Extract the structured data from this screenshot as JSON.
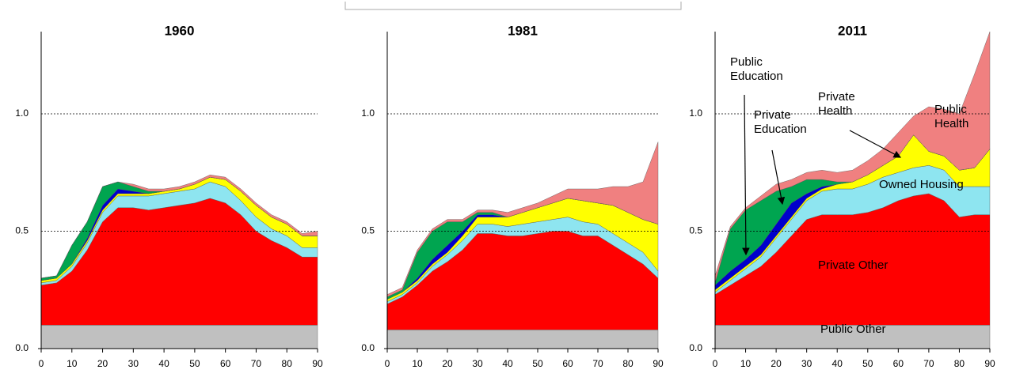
{
  "chart_data": [
    {
      "type": "stacked_area",
      "title": "1960",
      "x": [
        0,
        5,
        10,
        15,
        20,
        25,
        30,
        35,
        40,
        45,
        50,
        55,
        60,
        65,
        70,
        75,
        80,
        85,
        90
      ],
      "xlim": [
        0,
        90
      ],
      "xticks": [
        0,
        10,
        20,
        30,
        40,
        50,
        60,
        70,
        80,
        90
      ],
      "ylim": [
        0,
        1.35
      ],
      "yticks": [
        {
          "value": 0,
          "label": "0.0"
        },
        0.5,
        {
          "value": 1,
          "label": "1.0"
        }
      ],
      "grid": true,
      "series": [
        {
          "color": "#c0c0c0",
          "values": [
            0.1,
            0.1,
            0.1,
            0.1,
            0.1,
            0.1,
            0.1,
            0.1,
            0.1,
            0.1,
            0.1,
            0.1,
            0.1,
            0.1,
            0.1,
            0.1,
            0.1,
            0.1,
            0.1
          ]
        },
        {
          "color": "#ff0000",
          "values": [
            0.17,
            0.18,
            0.23,
            0.32,
            0.44,
            0.5,
            0.5,
            0.49,
            0.5,
            0.51,
            0.52,
            0.54,
            0.52,
            0.47,
            0.4,
            0.36,
            0.33,
            0.29,
            0.29
          ]
        },
        {
          "color": "#8ee5f0",
          "values": [
            0.01,
            0.01,
            0.02,
            0.03,
            0.04,
            0.05,
            0.05,
            0.06,
            0.06,
            0.06,
            0.06,
            0.07,
            0.07,
            0.06,
            0.06,
            0.05,
            0.05,
            0.04,
            0.04
          ]
        },
        {
          "color": "#ffff00",
          "values": [
            0.01,
            0.01,
            0.01,
            0.01,
            0.01,
            0.01,
            0.01,
            0.01,
            0.01,
            0.01,
            0.02,
            0.02,
            0.03,
            0.04,
            0.05,
            0.05,
            0.05,
            0.05,
            0.05
          ]
        },
        {
          "color": "#0000cc",
          "values": [
            0,
            0,
            0,
            0.01,
            0.02,
            0.02,
            0.01,
            0,
            0,
            0,
            0,
            0,
            0,
            0,
            0,
            0,
            0,
            0,
            0
          ]
        },
        {
          "color": "#00a550",
          "values": [
            0.01,
            0.01,
            0.08,
            0.07,
            0.08,
            0.03,
            0.02,
            0.01,
            0,
            0,
            0,
            0,
            0,
            0,
            0,
            0,
            0,
            0,
            0
          ]
        },
        {
          "color": "#f08080",
          "values": [
            0,
            0,
            0,
            0,
            0,
            0,
            0.01,
            0.01,
            0.01,
            0.01,
            0.01,
            0.01,
            0.01,
            0.01,
            0.01,
            0.01,
            0.01,
            0.01,
            0.02
          ]
        }
      ]
    },
    {
      "type": "stacked_area",
      "title": "1981",
      "x": [
        0,
        5,
        10,
        15,
        20,
        25,
        30,
        35,
        40,
        45,
        50,
        55,
        60,
        65,
        70,
        75,
        80,
        85,
        90
      ],
      "xlim": [
        0,
        90
      ],
      "xticks": [
        0,
        10,
        20,
        30,
        40,
        50,
        60,
        70,
        80,
        90
      ],
      "ylim": [
        0,
        1.35
      ],
      "yticks": [
        {
          "value": 0,
          "label": "0.0"
        },
        0.5,
        {
          "value": 1,
          "label": "1.0"
        }
      ],
      "grid": true,
      "series": [
        {
          "color": "#c0c0c0",
          "values": [
            0.08,
            0.08,
            0.08,
            0.08,
            0.08,
            0.08,
            0.08,
            0.08,
            0.08,
            0.08,
            0.08,
            0.08,
            0.08,
            0.08,
            0.08,
            0.08,
            0.08,
            0.08,
            0.08
          ]
        },
        {
          "color": "#ff0000",
          "values": [
            0.11,
            0.14,
            0.19,
            0.25,
            0.29,
            0.34,
            0.41,
            0.41,
            0.4,
            0.4,
            0.41,
            0.42,
            0.42,
            0.4,
            0.4,
            0.36,
            0.32,
            0.28,
            0.22
          ]
        },
        {
          "color": "#8ee5f0",
          "values": [
            0.01,
            0.01,
            0.01,
            0.02,
            0.03,
            0.04,
            0.04,
            0.04,
            0.04,
            0.05,
            0.05,
            0.05,
            0.06,
            0.06,
            0.05,
            0.05,
            0.05,
            0.05,
            0.03
          ]
        },
        {
          "color": "#ffff00",
          "values": [
            0.01,
            0.01,
            0.01,
            0.01,
            0.01,
            0.02,
            0.03,
            0.03,
            0.04,
            0.05,
            0.06,
            0.07,
            0.08,
            0.09,
            0.09,
            0.12,
            0.13,
            0.14,
            0.2
          ]
        },
        {
          "color": "#0000cc",
          "values": [
            0,
            0,
            0.01,
            0.02,
            0.03,
            0.02,
            0.01,
            0.01,
            0,
            0,
            0,
            0,
            0,
            0,
            0,
            0,
            0,
            0,
            0
          ]
        },
        {
          "color": "#00a550",
          "values": [
            0.01,
            0.01,
            0.11,
            0.12,
            0.1,
            0.04,
            0.01,
            0.01,
            0,
            0,
            0,
            0,
            0,
            0,
            0,
            0,
            0,
            0,
            0
          ]
        },
        {
          "color": "#f08080",
          "values": [
            0.01,
            0.01,
            0.01,
            0.01,
            0.01,
            0.01,
            0.01,
            0.01,
            0.02,
            0.02,
            0.02,
            0.03,
            0.04,
            0.05,
            0.06,
            0.08,
            0.11,
            0.16,
            0.35
          ]
        }
      ]
    },
    {
      "type": "stacked_area",
      "title": "2011",
      "x": [
        0,
        5,
        10,
        15,
        20,
        25,
        30,
        35,
        40,
        45,
        50,
        55,
        60,
        65,
        70,
        75,
        80,
        85,
        90
      ],
      "xlim": [
        0,
        90
      ],
      "xticks": [
        0,
        10,
        20,
        30,
        40,
        50,
        60,
        70,
        80,
        90
      ],
      "ylim": [
        0,
        1.35
      ],
      "yticks": [
        {
          "value": 0,
          "label": "0.0"
        },
        0.5,
        {
          "value": 1,
          "label": "1.0"
        }
      ],
      "grid": true,
      "series": [
        {
          "name": "Public  Other",
          "color": "#c0c0c0",
          "values": [
            0.1,
            0.1,
            0.1,
            0.1,
            0.1,
            0.1,
            0.1,
            0.1,
            0.1,
            0.1,
            0.1,
            0.1,
            0.1,
            0.1,
            0.1,
            0.1,
            0.1,
            0.1,
            0.1
          ]
        },
        {
          "name": "Private Other",
          "color": "#ff0000",
          "values": [
            0.13,
            0.17,
            0.21,
            0.25,
            0.31,
            0.38,
            0.45,
            0.47,
            0.47,
            0.47,
            0.48,
            0.5,
            0.53,
            0.55,
            0.56,
            0.53,
            0.46,
            0.47,
            0.47
          ]
        },
        {
          "name": "Owned Housing",
          "color": "#8ee5f0",
          "values": [
            0.01,
            0.02,
            0.03,
            0.04,
            0.06,
            0.07,
            0.08,
            0.1,
            0.11,
            0.11,
            0.12,
            0.13,
            0.12,
            0.12,
            0.12,
            0.13,
            0.13,
            0.12,
            0.12
          ]
        },
        {
          "name": "Private Health",
          "color": "#ffff00",
          "values": [
            0.01,
            0.01,
            0.01,
            0.01,
            0.01,
            0.01,
            0.01,
            0.01,
            0.02,
            0.03,
            0.04,
            0.05,
            0.07,
            0.14,
            0.06,
            0.06,
            0.07,
            0.08,
            0.16
          ]
        },
        {
          "name": "Private Education",
          "color": "#0000cc",
          "values": [
            0.02,
            0.03,
            0.03,
            0.04,
            0.05,
            0.06,
            0.02,
            0.01,
            0,
            0,
            0,
            0,
            0,
            0,
            0,
            0,
            0,
            0,
            0
          ]
        },
        {
          "name": "Public Education",
          "color": "#00a550",
          "values": [
            0.01,
            0.18,
            0.21,
            0.19,
            0.14,
            0.07,
            0.06,
            0.03,
            0.01,
            0,
            0,
            0,
            0,
            0,
            0,
            0,
            0,
            0,
            0
          ]
        },
        {
          "name": "Public Health",
          "color": "#f08080",
          "values": [
            0.03,
            0.01,
            0.01,
            0.02,
            0.03,
            0.03,
            0.03,
            0.04,
            0.04,
            0.05,
            0.06,
            0.07,
            0.1,
            0.08,
            0.19,
            0.2,
            0.24,
            0.4,
            0.5
          ]
        }
      ]
    }
  ]
}
